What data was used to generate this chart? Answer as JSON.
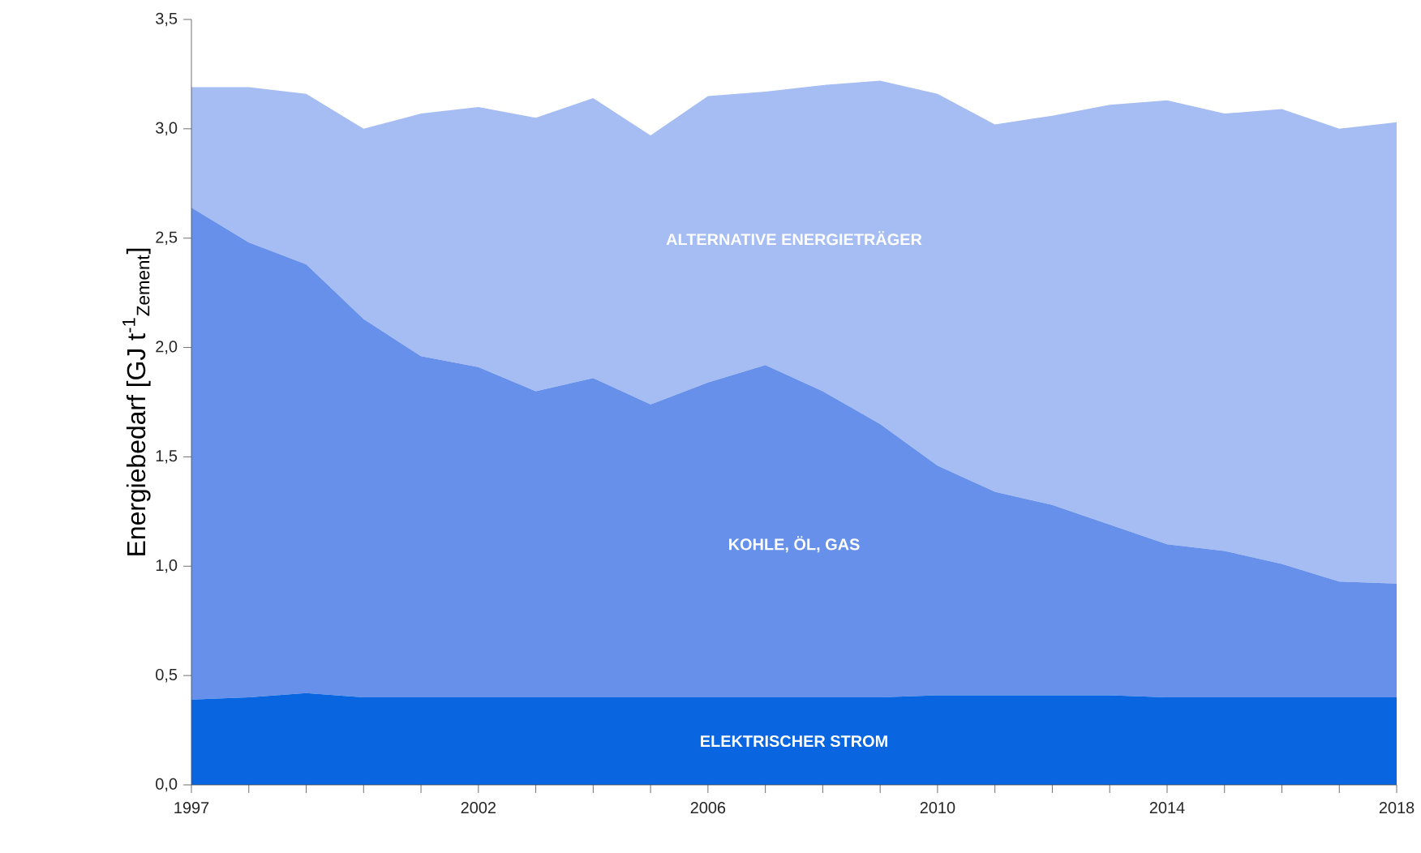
{
  "chart_data": {
    "type": "area",
    "stacked": true,
    "ylabel": "Energiebedarf [GJ t$^{-1}$$_{Zement}$]",
    "x": [
      1997,
      1998,
      1999,
      2000,
      2001,
      2002,
      2003,
      2004,
      2005,
      2006,
      2007,
      2008,
      2009,
      2010,
      2011,
      2012,
      2013,
      2014,
      2015,
      2016,
      2017,
      2018
    ],
    "series": [
      {
        "name": "ELEKTRISCHER STROM",
        "color": "#0a66e0",
        "values": [
          0.39,
          0.4,
          0.42,
          0.4,
          0.4,
          0.4,
          0.4,
          0.4,
          0.4,
          0.4,
          0.4,
          0.4,
          0.4,
          0.41,
          0.41,
          0.41,
          0.41,
          0.4,
          0.4,
          0.4,
          0.4,
          0.4
        ]
      },
      {
        "name": "KOHLE, ÖL, GAS",
        "color": "#6690ea",
        "values": [
          2.25,
          2.08,
          1.96,
          1.73,
          1.56,
          1.51,
          1.4,
          1.46,
          1.34,
          1.44,
          1.52,
          1.4,
          1.25,
          1.05,
          0.93,
          0.87,
          0.78,
          0.7,
          0.67,
          0.61,
          0.53,
          0.52
        ]
      },
      {
        "name": "ALTERNATIVE ENERGIETRÄGER",
        "color": "#a6bdf3",
        "values": [
          0.55,
          0.71,
          0.78,
          0.87,
          1.11,
          1.19,
          1.25,
          1.28,
          1.23,
          1.31,
          1.25,
          1.4,
          1.57,
          1.7,
          1.68,
          1.78,
          1.92,
          2.03,
          2.0,
          2.08,
          2.07,
          2.11
        ]
      }
    ],
    "xlim": [
      1997,
      2018
    ],
    "xticks": [
      {
        "value": 1997,
        "label": "1997"
      },
      {
        "value": 1998,
        "label": null
      },
      {
        "value": 1999,
        "label": null
      },
      {
        "value": 2000,
        "label": null
      },
      {
        "value": 2001,
        "label": null
      },
      {
        "value": 2002,
        "label": "2002"
      },
      {
        "value": 2003,
        "label": null
      },
      {
        "value": 2004,
        "label": null
      },
      {
        "value": 2005,
        "label": null
      },
      {
        "value": 2006,
        "label": "2006"
      },
      {
        "value": 2007,
        "label": null
      },
      {
        "value": 2008,
        "label": null
      },
      {
        "value": 2009,
        "label": null
      },
      {
        "value": 2010,
        "label": "2010"
      },
      {
        "value": 2011,
        "label": null
      },
      {
        "value": 2012,
        "label": null
      },
      {
        "value": 2013,
        "label": null
      },
      {
        "value": 2014,
        "label": "2014"
      },
      {
        "value": 2015,
        "label": null
      },
      {
        "value": 2016,
        "label": null
      },
      {
        "value": 2017,
        "label": null
      },
      {
        "value": 2018,
        "label": "2018"
      }
    ],
    "ylim": [
      0,
      3.5
    ],
    "yticks": [
      {
        "value": 0,
        "label": "0,0"
      },
      {
        "value": 0.5,
        "label": "0,5"
      },
      {
        "value": 1,
        "label": "1,0"
      },
      {
        "value": 1.5,
        "label": "1,5"
      },
      {
        "value": 2,
        "label": "2,0"
      },
      {
        "value": 2.5,
        "label": "2,5"
      },
      {
        "value": 3,
        "label": "3,0"
      },
      {
        "value": 3.5,
        "label": "3,5"
      }
    ],
    "grid": false,
    "legend": false
  }
}
